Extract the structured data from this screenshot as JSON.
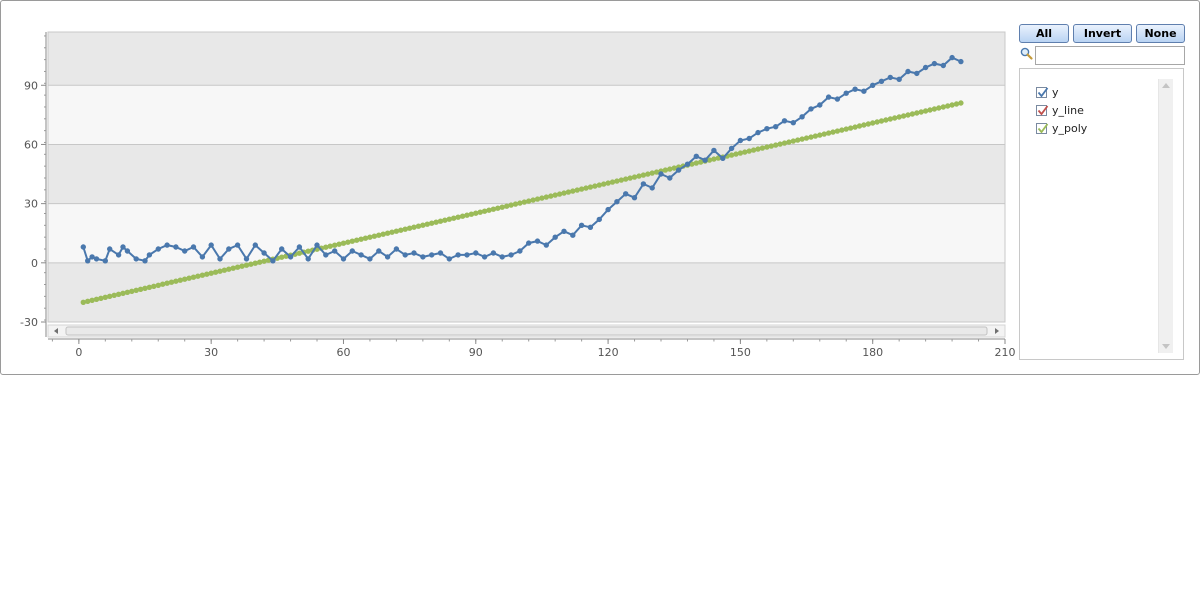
{
  "chart_data": {
    "type": "line",
    "title": "",
    "xlabel": "",
    "ylabel": "",
    "xlim": [
      -7,
      210
    ],
    "ylim": [
      -30,
      117
    ],
    "x_ticks": [
      0,
      30,
      60,
      90,
      120,
      150,
      180,
      210
    ],
    "y_ticks": [
      -30,
      0,
      30,
      60,
      90
    ],
    "grid": "horizontal bands",
    "legend_position": "right",
    "series": [
      {
        "name": "y",
        "color": "#4a78ad",
        "points": [
          [
            1,
            8
          ],
          [
            2,
            1
          ],
          [
            3,
            3
          ],
          [
            4,
            2
          ],
          [
            6,
            1
          ],
          [
            7,
            7
          ],
          [
            9,
            4
          ],
          [
            10,
            8
          ],
          [
            11,
            6
          ],
          [
            13,
            2
          ],
          [
            15,
            1
          ],
          [
            16,
            4
          ],
          [
            18,
            7
          ],
          [
            20,
            9
          ],
          [
            22,
            8
          ],
          [
            24,
            6
          ],
          [
            26,
            8
          ],
          [
            28,
            3
          ],
          [
            30,
            9
          ],
          [
            32,
            2
          ],
          [
            34,
            7
          ],
          [
            36,
            9
          ],
          [
            38,
            2
          ],
          [
            40,
            9
          ],
          [
            42,
            5
          ],
          [
            44,
            1
          ],
          [
            46,
            7
          ],
          [
            48,
            3
          ],
          [
            50,
            8
          ],
          [
            52,
            2
          ],
          [
            54,
            9
          ],
          [
            56,
            4
          ],
          [
            58,
            6
          ],
          [
            60,
            2
          ],
          [
            62,
            6
          ],
          [
            64,
            4
          ],
          [
            66,
            2
          ],
          [
            68,
            6
          ],
          [
            70,
            3
          ],
          [
            72,
            7
          ],
          [
            74,
            4
          ],
          [
            76,
            5
          ],
          [
            78,
            3
          ],
          [
            80,
            4
          ],
          [
            82,
            5
          ],
          [
            84,
            2
          ],
          [
            86,
            4
          ],
          [
            88,
            4
          ],
          [
            90,
            5
          ],
          [
            92,
            3
          ],
          [
            94,
            5
          ],
          [
            96,
            3
          ],
          [
            98,
            4
          ],
          [
            100,
            6
          ],
          [
            102,
            10
          ],
          [
            104,
            11
          ],
          [
            106,
            9
          ],
          [
            108,
            13
          ],
          [
            110,
            16
          ],
          [
            112,
            14
          ],
          [
            114,
            19
          ],
          [
            116,
            18
          ],
          [
            118,
            22
          ],
          [
            120,
            27
          ],
          [
            122,
            31
          ],
          [
            124,
            35
          ],
          [
            126,
            33
          ],
          [
            128,
            40
          ],
          [
            130,
            38
          ],
          [
            132,
            45
          ],
          [
            134,
            43
          ],
          [
            136,
            47
          ],
          [
            138,
            50
          ],
          [
            140,
            54
          ],
          [
            142,
            52
          ],
          [
            144,
            57
          ],
          [
            146,
            53
          ],
          [
            148,
            58
          ],
          [
            150,
            62
          ],
          [
            152,
            63
          ],
          [
            154,
            66
          ],
          [
            156,
            68
          ],
          [
            158,
            69
          ],
          [
            160,
            72
          ],
          [
            162,
            71
          ],
          [
            164,
            74
          ],
          [
            166,
            78
          ],
          [
            168,
            80
          ],
          [
            170,
            84
          ],
          [
            172,
            83
          ],
          [
            174,
            86
          ],
          [
            176,
            88
          ],
          [
            178,
            87
          ],
          [
            180,
            90
          ],
          [
            182,
            92
          ],
          [
            184,
            94
          ],
          [
            186,
            93
          ],
          [
            188,
            97
          ],
          [
            190,
            96
          ],
          [
            192,
            99
          ],
          [
            194,
            101
          ],
          [
            196,
            100
          ],
          [
            198,
            104
          ],
          [
            200,
            102
          ]
        ]
      },
      {
        "name": "y_line",
        "color": "#c0504d",
        "line": {
          "x0": 1,
          "y0": -20,
          "x1": 200,
          "y1": 81
        }
      },
      {
        "name": "y_poly",
        "color": "#9bbb59",
        "line": {
          "x0": 1,
          "y0": -20,
          "x1": 200,
          "y1": 81
        }
      }
    ]
  },
  "buttons": {
    "all": "All",
    "invert": "Invert",
    "none": "None"
  },
  "search": {
    "value": "",
    "placeholder": ""
  },
  "legend": {
    "items": [
      {
        "label": "y",
        "color": "#4a78ad",
        "checked": true
      },
      {
        "label": "y_line",
        "color": "#c0504d",
        "checked": true
      },
      {
        "label": "y_poly",
        "color": "#9bbb59",
        "checked": true
      }
    ]
  }
}
